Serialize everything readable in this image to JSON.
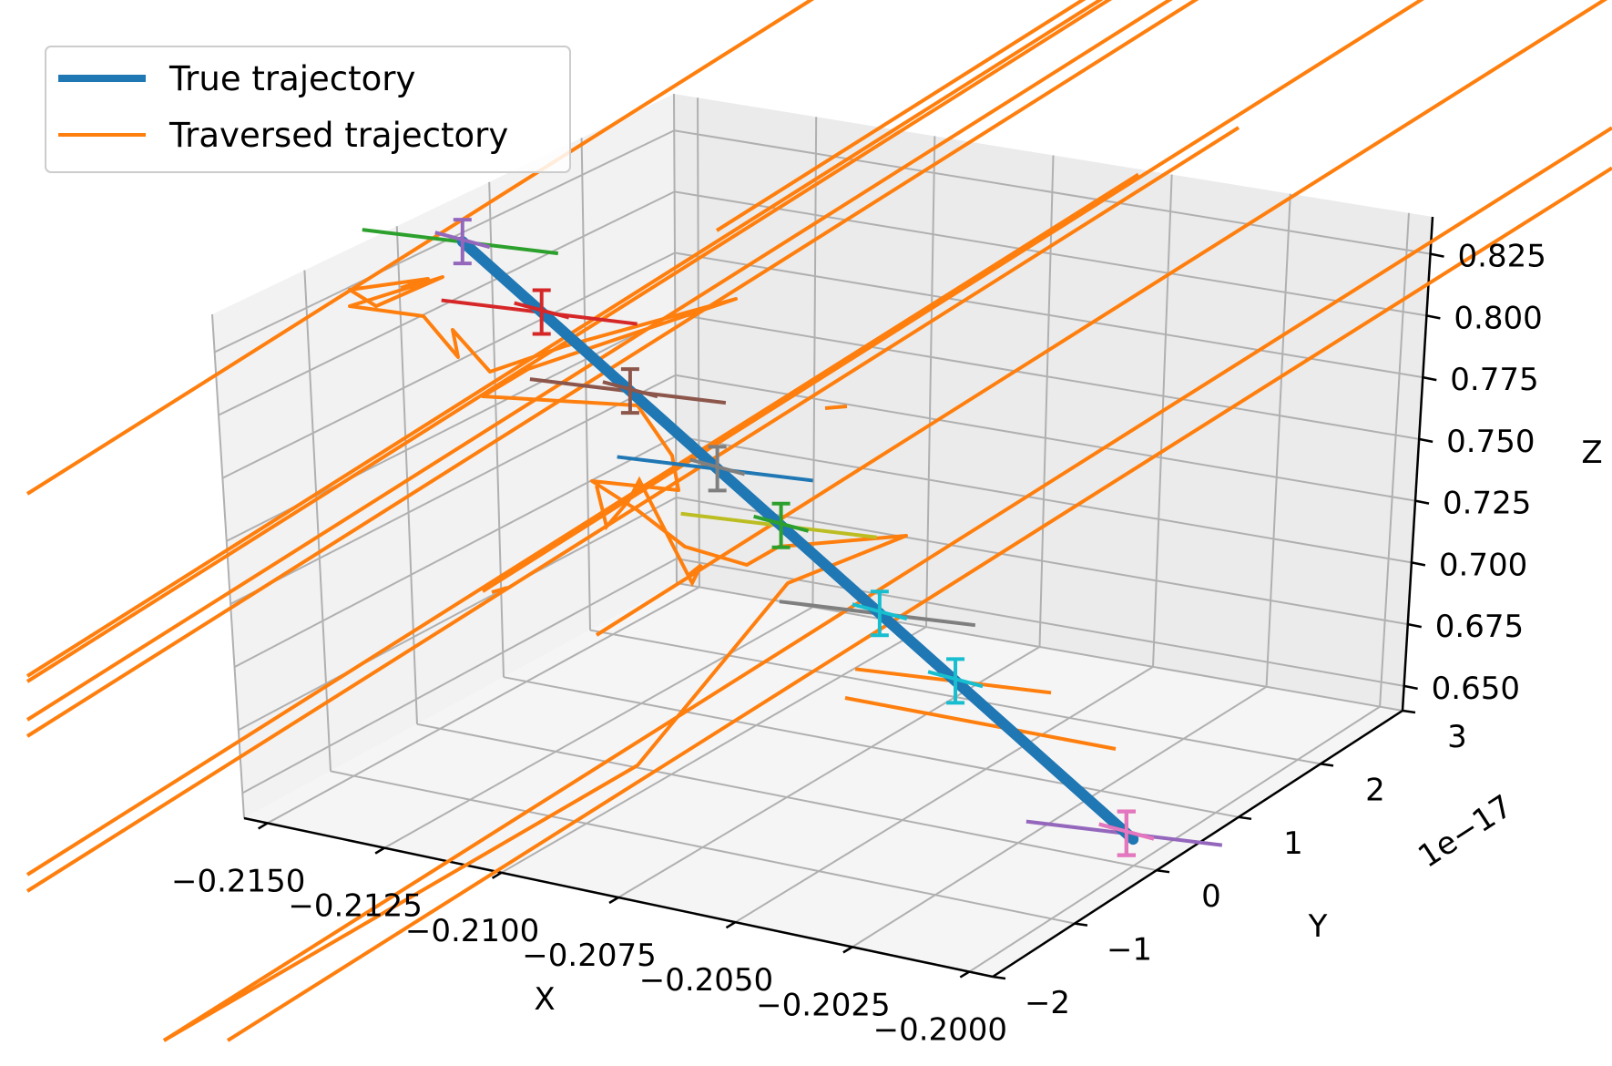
{
  "chart_data": {
    "type": "line",
    "projection": "3d",
    "title": "",
    "xlabel": "X",
    "ylabel": "Y",
    "zlabel": "Z",
    "x_ticks": [
      "−0.2150",
      "−0.2125",
      "−0.2100",
      "−0.2075",
      "−0.2050",
      "−0.2025",
      "−0.2000"
    ],
    "y_ticks": [
      "−2",
      "−1",
      "0",
      "1",
      "2",
      "3"
    ],
    "y_offset_label": "1e−17",
    "z_ticks": [
      "0.650",
      "0.675",
      "0.700",
      "0.725",
      "0.750",
      "0.775",
      "0.800",
      "0.825"
    ],
    "xlim": [
      -0.2155,
      -0.1995
    ],
    "ylim": [
      -2,
      3
    ],
    "zlim": [
      0.64,
      0.84
    ],
    "grid": true,
    "legend_position": "top-left",
    "legend": [
      {
        "label": "True trajectory",
        "color": "#1f77b4"
      },
      {
        "label": "Traversed trajectory",
        "color": "#ff7f0e"
      }
    ],
    "series": [
      {
        "name": "True trajectory",
        "color": "#1f77b4",
        "x": [
          -0.2143,
          -0.2
        ],
        "y": [
          0,
          0
        ],
        "z": [
          0.825,
          0.65
        ]
      }
    ],
    "error_bar_colors": [
      "#9467bd",
      "#d62728",
      "#8c564b",
      "#7f7f7f",
      "#2ca02c",
      "#17becf",
      "#17becf",
      "#d62728",
      "#e377c2"
    ],
    "cross_segment_colors": [
      "#2ca02c",
      "#d62728",
      "#8c564b",
      "#1f77b4",
      "#bcbd22",
      "#7f7f7f",
      "#ff7f0e",
      "#9467bd"
    ],
    "traversed_color": "#ff7f0e"
  }
}
